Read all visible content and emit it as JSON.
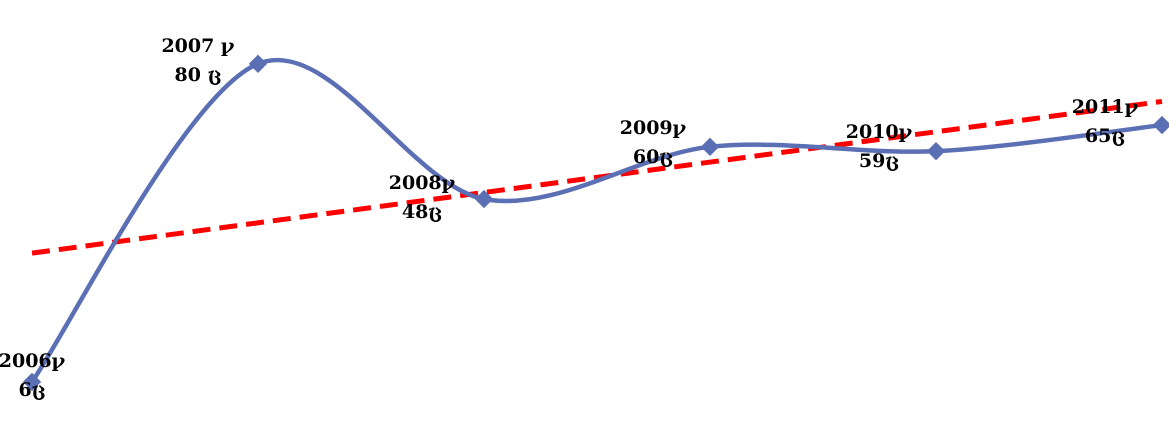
{
  "chart_data": {
    "type": "line",
    "x": [
      "2006",
      "2007",
      "2008",
      "2009",
      "2010",
      "2011"
    ],
    "values": [
      6,
      80,
      48,
      60,
      59,
      65
    ],
    "year_suffix": "ꝩ",
    "value_suffix": "ც",
    "data_labels": [
      {
        "year": "2006ꝩ",
        "value": "6ც"
      },
      {
        "year": "2007 ꝩ",
        "value": "80 ც"
      },
      {
        "year": "2008ꝩ",
        "value": "48ც"
      },
      {
        "year": "2009ꝩ",
        "value": "60ც"
      },
      {
        "year": "2010ꝩ",
        "value": "59ც"
      },
      {
        "year": "2011ꝩ",
        "value": "65ც"
      }
    ],
    "trendline": {
      "type": "linear",
      "style": "dashed"
    },
    "ylim": [
      0,
      90
    ],
    "grid": false,
    "legend": "none",
    "title": "",
    "xlabel": "",
    "ylabel": ""
  },
  "colors": {
    "series": "#5b70b4",
    "marker": "#5b70b4",
    "trendline": "#ff0000",
    "label": "#000000"
  }
}
